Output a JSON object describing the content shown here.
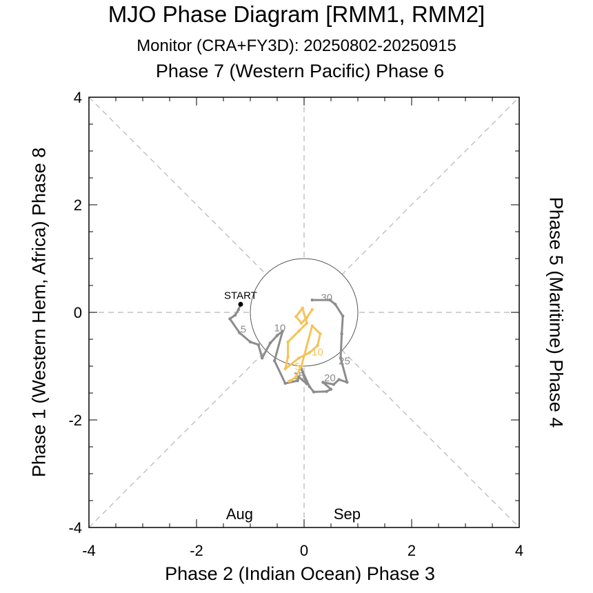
{
  "title": "MJO Phase Diagram [RMM1, RMM2]",
  "subtitle": "Monitor (CRA+FY3D): 20250802-20250915",
  "labels": {
    "top": "Phase 7 (Western Pacific) Phase 6",
    "bottom": "Phase 2 (Indian Ocean) Phase 3",
    "left": "Phase 1 (Western Hem, Africa) Phase 8",
    "right": "Phase 5 (Maritime) Phase 4"
  },
  "chart_data": {
    "type": "scatter",
    "xlim": [
      -4,
      4
    ],
    "ylim": [
      -4,
      4
    ],
    "xticks": [
      "-4",
      "-2",
      "0",
      "2",
      "4"
    ],
    "yticks": [
      "-4",
      "-2",
      "0",
      "2",
      "4"
    ],
    "start_label": "START",
    "colors": {
      "aug": "#8c8c8c",
      "sep": "#f5c35a",
      "start": "#000000",
      "guide": "#b4b4b4"
    },
    "legend": [
      {
        "label": "Aug",
        "color": "#a0a0a0"
      },
      {
        "label": "Sep",
        "color": "#f5c35a"
      }
    ],
    "series": [
      {
        "name": "Aug",
        "points": [
          [
            -1.18,
            0.15
          ],
          [
            -1.22,
            0.05
          ],
          [
            -1.28,
            -0.05
          ],
          [
            -1.38,
            -0.12
          ],
          [
            -1.2,
            -0.38
          ],
          [
            -1.0,
            -0.55
          ],
          [
            -0.85,
            -0.6
          ],
          [
            -0.78,
            -0.85
          ],
          [
            -0.63,
            -0.57
          ],
          [
            -0.5,
            -0.43
          ],
          [
            -0.4,
            -0.35
          ],
          [
            -0.55,
            -0.9
          ],
          [
            -0.35,
            -1.32
          ],
          [
            -0.12,
            -1.27
          ],
          [
            -0.1,
            -1.2
          ],
          [
            0.05,
            -1.33
          ],
          [
            -0.05,
            -1.05
          ],
          [
            0.1,
            -1.38
          ],
          [
            0.18,
            -1.48
          ],
          [
            0.42,
            -1.47
          ],
          [
            0.5,
            -1.43
          ],
          [
            0.35,
            -1.3
          ],
          [
            0.55,
            -1.34
          ],
          [
            0.65,
            -1.25
          ],
          [
            0.8,
            -1.3
          ],
          [
            0.68,
            -0.85
          ],
          [
            0.7,
            -0.4
          ],
          [
            0.72,
            -0.07
          ],
          [
            0.58,
            0.15
          ],
          [
            0.48,
            0.23
          ],
          [
            0.15,
            0.23
          ]
        ],
        "day_labels": [
          {
            "text": "5",
            "x": -1.13,
            "y": -0.33
          },
          {
            "text": "10",
            "x": -0.45,
            "y": -0.3
          },
          {
            "text": "15",
            "x": -0.1,
            "y": -1.19
          },
          {
            "text": "20",
            "x": 0.48,
            "y": -1.23
          },
          {
            "text": "25",
            "x": 0.75,
            "y": -0.92
          },
          {
            "text": "30",
            "x": 0.42,
            "y": 0.26
          }
        ]
      },
      {
        "name": "Sep",
        "points": [
          [
            0.15,
            0.05
          ],
          [
            0.05,
            -0.1
          ],
          [
            -0.05,
            -0.2
          ],
          [
            -0.15,
            -0.08
          ],
          [
            -0.03,
            0.08
          ],
          [
            0.05,
            -0.2
          ],
          [
            -0.1,
            -0.35
          ],
          [
            -0.3,
            -0.55
          ],
          [
            -0.3,
            -0.83
          ],
          [
            -0.35,
            -1.05
          ],
          [
            -0.1,
            -0.85
          ],
          [
            0.1,
            -0.75
          ],
          [
            0.25,
            -0.62
          ],
          [
            0.3,
            -0.4
          ],
          [
            0.15,
            -0.25
          ],
          [
            -0.05,
            -1.0
          ],
          [
            -0.15,
            -1.2
          ],
          [
            -0.25,
            -1.27
          ],
          [
            -0.28,
            -1.28
          ]
        ],
        "day_labels": [
          {
            "text": "5",
            "x": -0.12,
            "y": -1.02
          },
          {
            "text": "10",
            "x": 0.25,
            "y": -0.75
          }
        ]
      }
    ]
  }
}
